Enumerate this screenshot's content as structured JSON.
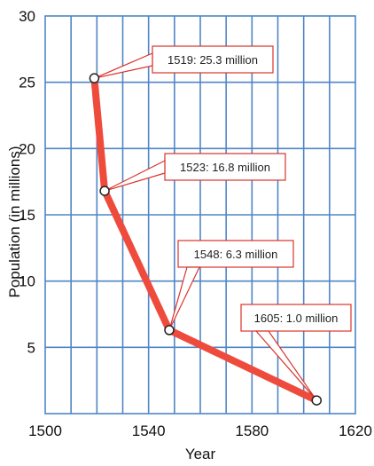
{
  "chart_data": {
    "type": "line",
    "xlabel": "Year",
    "ylabel": "Population (in millions)",
    "xlim": [
      1500,
      1620
    ],
    "ylim": [
      0,
      30
    ],
    "x_ticks": [
      1500,
      1540,
      1580,
      1620
    ],
    "y_ticks": [
      5,
      10,
      15,
      20,
      25,
      30
    ],
    "grid": true,
    "series": [
      {
        "x": [
          1519,
          1523,
          1548,
          1605
        ],
        "y": [
          25.3,
          16.8,
          6.3,
          1.0
        ],
        "color": "#ef4b3c"
      }
    ],
    "annotations": [
      "1519: 25.3 million",
      "1523: 16.8 million",
      "1548: 6.3 million",
      "1605: 1.0 million"
    ]
  }
}
